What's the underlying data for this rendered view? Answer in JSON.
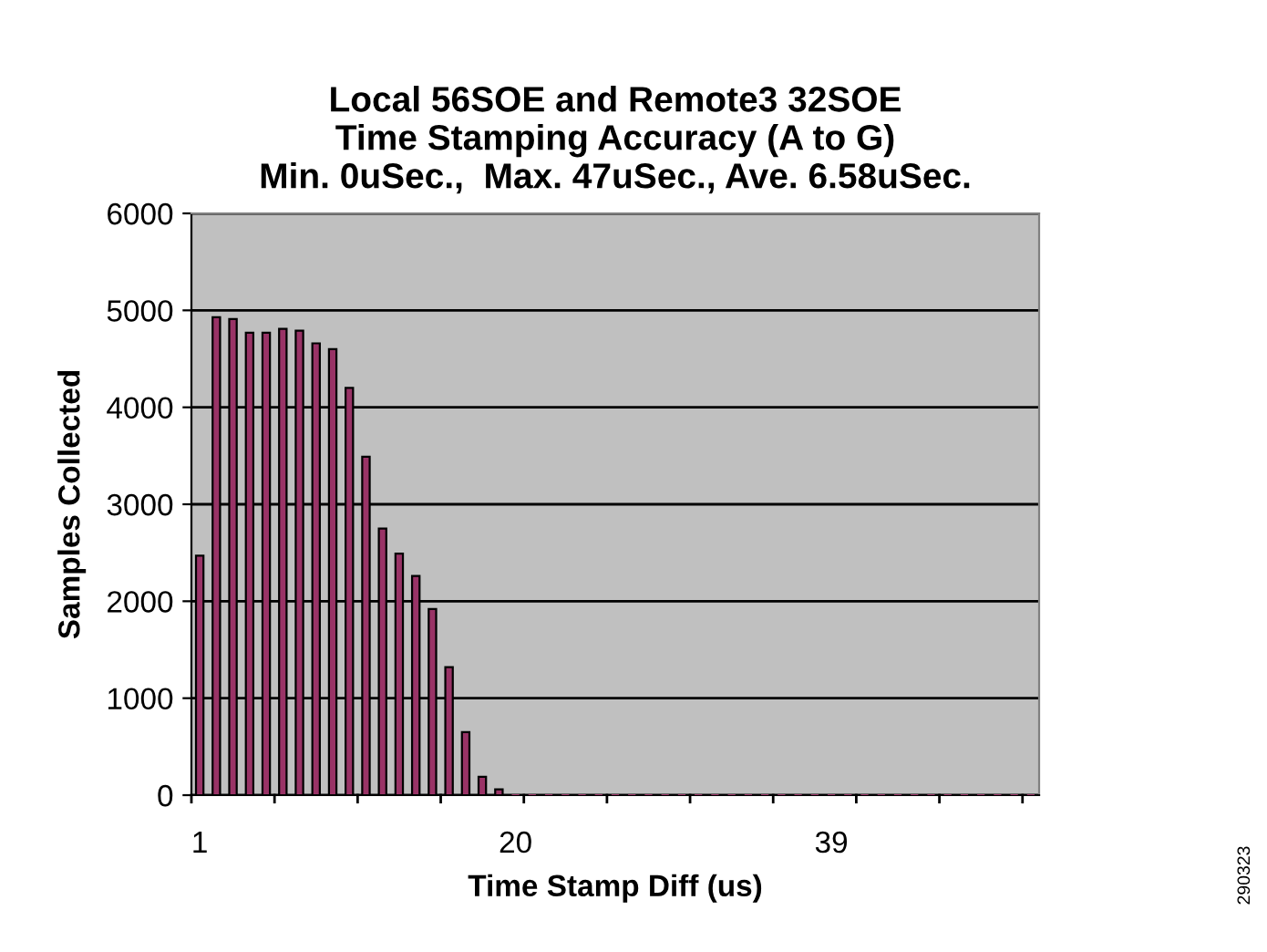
{
  "chart_data": {
    "type": "bar",
    "title": "Local 56SOE and Remote3 32SOE\nTime Stamping Accuracy (A to G)\nMin. 0uSec.,  Max. 47uSec., Ave. 6.58uSec.",
    "xlabel": "Time Stamp Diff (us)",
    "ylabel": "Samples Collected",
    "categories": [
      "1",
      null,
      null,
      null,
      null,
      null,
      null,
      null,
      null,
      null,
      null,
      null,
      null,
      null,
      null,
      null,
      null,
      null,
      null,
      "20",
      null,
      null,
      null,
      null,
      null,
      null,
      null,
      null,
      null,
      null,
      null,
      null,
      null,
      null,
      null,
      null,
      null,
      null,
      "39",
      null,
      null,
      null,
      null,
      null,
      null,
      null,
      null,
      null,
      null,
      null,
      null
    ],
    "values": [
      2470,
      4930,
      4910,
      4770,
      4770,
      4810,
      4790,
      4660,
      4600,
      4200,
      3490,
      2750,
      2490,
      2260,
      1920,
      1320,
      650,
      190,
      60,
      0,
      0,
      0,
      0,
      0,
      0,
      0,
      0,
      0,
      0,
      0,
      0,
      0,
      0,
      0,
      0,
      0,
      0,
      0,
      0,
      0,
      0,
      0,
      0,
      0,
      0,
      0,
      0,
      0,
      0,
      0,
      0
    ],
    "color": "#993366",
    "ylim": [
      0,
      6000
    ],
    "yticks": [
      0,
      1000,
      2000,
      3000,
      4000,
      5000,
      6000
    ],
    "grid": "y",
    "annotations": [
      "290323"
    ]
  }
}
